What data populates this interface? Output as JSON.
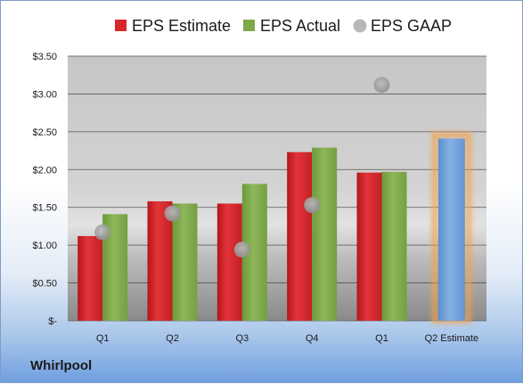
{
  "company": "Whirlpool",
  "chart_data": {
    "type": "bar",
    "categories": [
      "Q1",
      "Q2",
      "Q3",
      "Q4",
      "Q1",
      "Q2 Estimate"
    ],
    "series": [
      {
        "name": "EPS Estimate",
        "color": "#d8262b",
        "values": [
          1.12,
          1.58,
          1.55,
          2.23,
          1.96,
          null
        ]
      },
      {
        "name": "EPS Actual",
        "color": "#7fa84a",
        "values": [
          1.41,
          1.55,
          1.81,
          2.29,
          1.97,
          null
        ]
      },
      {
        "name": "EPS GAAP",
        "color": "#a9a9a9",
        "marker": "circle",
        "values": [
          1.17,
          1.42,
          0.94,
          1.53,
          3.12,
          null
        ]
      }
    ],
    "estimate_bar": {
      "category": "Q2 Estimate",
      "value": 2.41,
      "color": "#6f9fd8",
      "glow_color": "#f5a24a"
    },
    "ylim": [
      0,
      3.5
    ],
    "ytick_values": [
      0,
      0.5,
      1,
      1.5,
      2,
      2.5,
      3,
      3.5
    ],
    "ytick_labels": [
      "$-",
      "$0.50",
      "$1.00",
      "$1.50",
      "$2.00",
      "$2.50",
      "$3.00",
      "$3.50"
    ],
    "grid": true,
    "legend": "top"
  }
}
